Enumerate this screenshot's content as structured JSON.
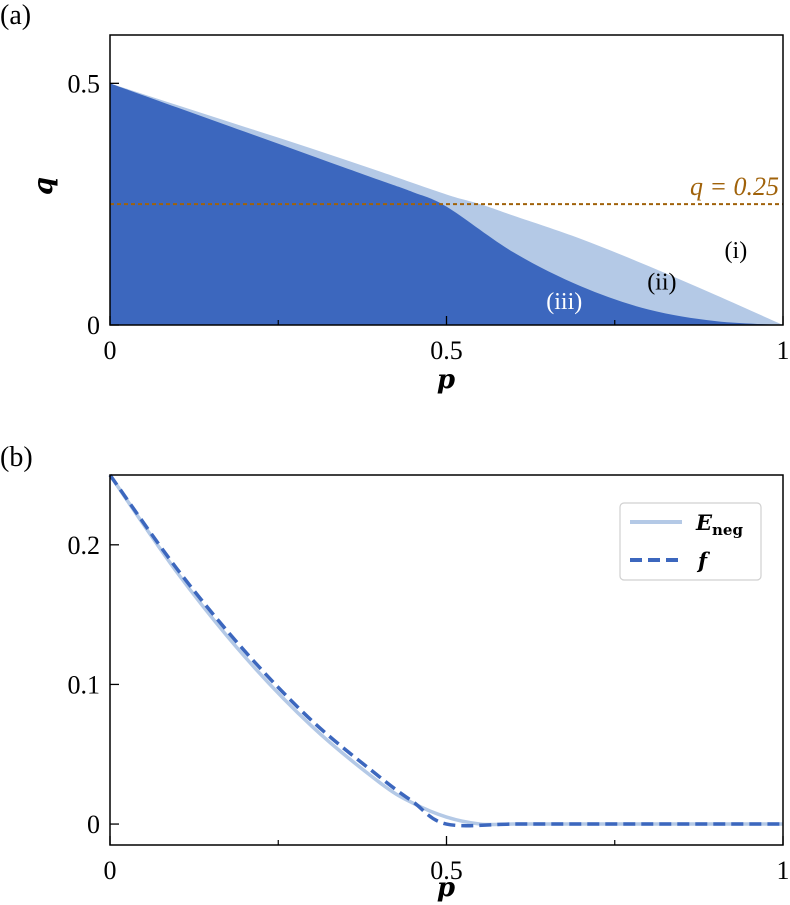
{
  "chart_data": [
    {
      "panel_label": "(a)",
      "type": "area",
      "xlabel": "p",
      "ylabel": "q",
      "xlim": [
        0,
        1
      ],
      "ylim": [
        0,
        0.6
      ],
      "xticks": [
        {
          "value": 0,
          "label": "0"
        },
        {
          "value": 0.5,
          "label": "0.5"
        },
        {
          "value": 1,
          "label": "1"
        }
      ],
      "xminor": [
        0.25,
        0.75
      ],
      "yticks": [
        {
          "value": 0,
          "label": "0"
        },
        {
          "value": 0.5,
          "label": "0.5"
        }
      ],
      "grid": false,
      "series": [
        {
          "boundary": "upper",
          "color": "#b4c9e6",
          "x": [
            0,
            0.1,
            0.2,
            0.3,
            0.4,
            0.5,
            0.55,
            0.6,
            0.7,
            0.8,
            0.9,
            1.0
          ],
          "y": [
            0.5,
            0.455,
            0.41,
            0.365,
            0.318,
            0.27,
            0.25,
            0.226,
            0.178,
            0.122,
            0.062,
            0.0
          ]
        },
        {
          "boundary": "lower",
          "color": "#3c67be",
          "x": [
            0,
            0.1,
            0.2,
            0.3,
            0.4,
            0.45,
            0.5,
            0.6,
            0.7,
            0.8,
            0.9,
            1.0
          ],
          "y": [
            0.5,
            0.45,
            0.4,
            0.35,
            0.3,
            0.275,
            0.245,
            0.15,
            0.08,
            0.032,
            0.008,
            0.0
          ]
        }
      ],
      "hline": {
        "y": 0.25,
        "color": "#a0620a",
        "label": "q = 0.25"
      },
      "regions": [
        {
          "label": "(i)",
          "x": 0.93,
          "y": 0.155,
          "color": "#000000"
        },
        {
          "label": "(ii)",
          "x": 0.82,
          "y": 0.09,
          "color": "#000000"
        },
        {
          "label": "(iii)",
          "x": 0.675,
          "y": 0.05,
          "color": "#ffffff"
        }
      ]
    },
    {
      "panel_label": "(b)",
      "type": "line",
      "xlabel": "p",
      "ylabel": "",
      "xlim": [
        0,
        1
      ],
      "ylim": [
        -0.015,
        0.25
      ],
      "xticks": [
        {
          "value": 0,
          "label": "0"
        },
        {
          "value": 0.5,
          "label": "0.5"
        },
        {
          "value": 1,
          "label": "1"
        }
      ],
      "xminor": [
        0.25,
        0.75
      ],
      "yticks": [
        {
          "value": 0,
          "label": "0"
        },
        {
          "value": 0.1,
          "label": "0.1"
        },
        {
          "value": 0.2,
          "label": "0.2"
        }
      ],
      "grid": false,
      "legend": {
        "placement": "upper right"
      },
      "series": [
        {
          "name": "E",
          "name_sub": "neg",
          "style": "solid",
          "color": "#b4c9e6",
          "x": [
            0,
            0.1,
            0.2,
            0.3,
            0.4,
            0.45,
            0.5,
            0.55,
            0.6,
            0.7,
            0.8,
            0.9,
            1.0
          ],
          "y": [
            0.25,
            0.18,
            0.12,
            0.07,
            0.03,
            0.015,
            0.005,
            0.0,
            0.0,
            0.0,
            0.0,
            0.0,
            0.0
          ]
        },
        {
          "name": "f",
          "style": "dashed",
          "color": "#3c67be",
          "x": [
            0,
            0.1,
            0.2,
            0.3,
            0.4,
            0.45,
            0.5,
            0.6,
            0.7,
            0.8,
            0.9,
            1.0
          ],
          "y": [
            0.25,
            0.1825,
            0.124,
            0.074,
            0.034,
            0.016,
            0.0,
            0.0,
            0.0,
            0.0,
            0.0,
            0.0
          ]
        }
      ]
    }
  ]
}
